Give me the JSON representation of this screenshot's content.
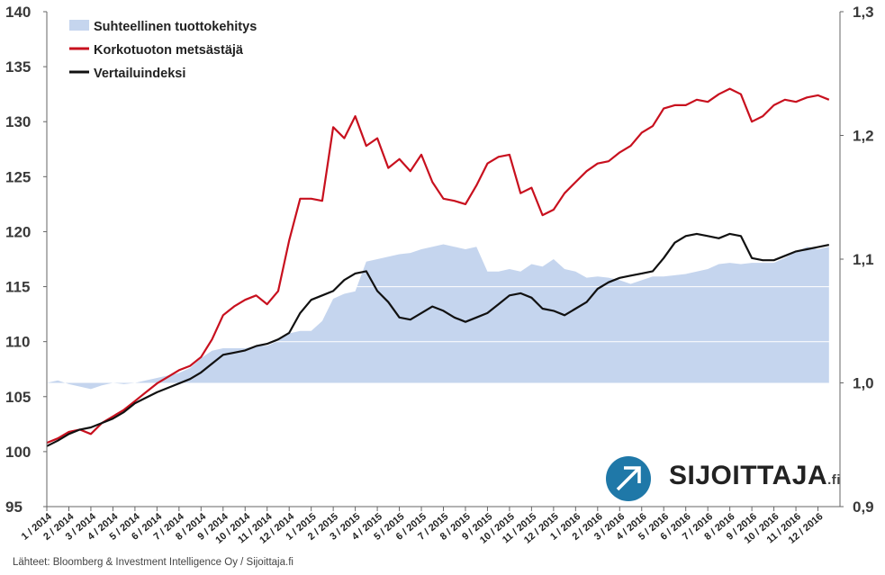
{
  "chart_data": {
    "type": "line",
    "title": "",
    "left_axis": {
      "ylim": [
        95,
        140
      ],
      "ticks": [
        "140",
        "135",
        "130",
        "125",
        "120",
        "115",
        "110",
        "105",
        "100",
        "95"
      ]
    },
    "right_axis": {
      "ylim": [
        0.9,
        1.3
      ],
      "ticks": [
        "1,3",
        "1,2",
        "1,1",
        "1,0",
        "0,9"
      ]
    },
    "x_ticks": [
      "1 / 2014",
      "2 / 2014",
      "3 / 2014",
      "4 / 2014",
      "5 / 2014",
      "6 / 2014",
      "7 / 2014",
      "8 / 2014",
      "9 / 2014",
      "10 / 2014",
      "11 / 2014",
      "12 / 2014",
      "1 / 2015",
      "2 / 2015",
      "3 / 2015",
      "4 / 2015",
      "5 / 2015",
      "6 / 2015",
      "7 / 2015",
      "8 / 2015",
      "9 / 2015",
      "10 / 2015",
      "11 / 2015",
      "12 / 2015",
      "1 / 2016",
      "2 / 2016",
      "3 / 2016",
      "4 / 2016",
      "5 / 2016",
      "6 / 2016",
      "7 / 2016",
      "8 / 2016",
      "9 / 2016",
      "10 / 2016",
      "11 / 2016",
      "12 / 2016"
    ],
    "legend_position": "top-left",
    "series": [
      {
        "name": "Suhteellinen tuottokehitys",
        "type": "area",
        "axis": "right",
        "color": "#c5d5ee",
        "x": [
          0,
          0.5,
          1,
          1.5,
          2,
          2.5,
          3,
          3.5,
          4,
          4.5,
          5,
          5.5,
          6,
          6.5,
          7,
          7.5,
          8,
          8.5,
          9,
          9.5,
          10,
          10.5,
          11,
          11.5,
          12,
          12.5,
          13,
          13.5,
          14,
          14.5,
          15,
          15.5,
          16,
          16.5,
          17,
          17.5,
          18,
          18.5,
          19,
          19.5,
          20,
          20.5,
          21,
          21.5,
          22,
          22.5,
          23,
          23.5,
          24,
          24.5,
          25,
          25.5,
          26,
          26.5,
          27,
          27.5,
          28,
          28.5,
          29,
          29.5,
          30,
          30.5,
          31,
          31.5,
          32,
          32.5,
          33,
          33.5,
          34,
          34.5,
          35,
          35.5
        ],
        "values": [
          1.0,
          1.002,
          0.999,
          0.997,
          0.995,
          0.998,
          1.0,
          0.999,
          1.0,
          1.002,
          1.004,
          1.006,
          1.008,
          1.012,
          1.02,
          1.026,
          1.028,
          1.028,
          1.028,
          1.03,
          1.03,
          1.034,
          1.04,
          1.042,
          1.042,
          1.05,
          1.068,
          1.072,
          1.074,
          1.098,
          1.1,
          1.102,
          1.104,
          1.105,
          1.108,
          1.11,
          1.112,
          1.11,
          1.108,
          1.11,
          1.09,
          1.09,
          1.092,
          1.09,
          1.096,
          1.094,
          1.1,
          1.092,
          1.09,
          1.085,
          1.086,
          1.085,
          1.083,
          1.08,
          1.083,
          1.086,
          1.086,
          1.087,
          1.088,
          1.09,
          1.092,
          1.096,
          1.097,
          1.096,
          1.097,
          1.097,
          1.097,
          1.101,
          1.106,
          1.11,
          1.108,
          1.11
        ]
      },
      {
        "name": "Korkotuoton metsästäjä",
        "type": "line",
        "axis": "left",
        "color": "#c8101e",
        "x": [
          0,
          0.5,
          1,
          1.5,
          2,
          2.5,
          3,
          3.5,
          4,
          4.5,
          5,
          5.5,
          6,
          6.5,
          7,
          7.5,
          8,
          8.5,
          9,
          9.5,
          10,
          10.5,
          11,
          11.5,
          12,
          12.5,
          13,
          13.5,
          14,
          14.5,
          15,
          15.5,
          16,
          16.5,
          17,
          17.5,
          18,
          18.5,
          19,
          19.5,
          20,
          20.5,
          21,
          21.5,
          22,
          22.5,
          23,
          23.5,
          24,
          24.5,
          25,
          25.5,
          26,
          26.5,
          27,
          27.5,
          28,
          28.5,
          29,
          29.5,
          30,
          30.5,
          31,
          31.5,
          32,
          32.5,
          33,
          33.5,
          34,
          34.5,
          35,
          35.5
        ],
        "values": [
          100.8,
          101.2,
          101.8,
          102.0,
          101.6,
          102.6,
          103.2,
          103.8,
          104.6,
          105.4,
          106.2,
          106.8,
          107.4,
          107.8,
          108.6,
          110.2,
          112.4,
          113.2,
          113.8,
          114.2,
          113.4,
          114.6,
          119.2,
          123.0,
          123.0,
          122.8,
          129.5,
          128.5,
          130.5,
          127.8,
          128.5,
          125.8,
          126.6,
          125.5,
          127.0,
          124.5,
          123.0,
          122.8,
          122.5,
          124.2,
          126.2,
          126.8,
          127.0,
          123.5,
          124.0,
          121.5,
          122.0,
          123.5,
          124.5,
          125.5,
          126.2,
          126.4,
          127.2,
          127.8,
          129.0,
          129.6,
          131.2,
          131.5,
          131.5,
          132.0,
          131.8,
          132.5,
          133.0,
          132.5,
          130.0,
          130.5,
          131.5,
          132.0,
          131.8,
          132.2,
          132.4,
          132.0
        ]
      },
      {
        "name": "Vertailuindeksi",
        "type": "line",
        "axis": "left",
        "color": "#111111",
        "x": [
          0,
          0.5,
          1,
          1.5,
          2,
          2.5,
          3,
          3.5,
          4,
          4.5,
          5,
          5.5,
          6,
          6.5,
          7,
          7.5,
          8,
          8.5,
          9,
          9.5,
          10,
          10.5,
          11,
          11.5,
          12,
          12.5,
          13,
          13.5,
          14,
          14.5,
          15,
          15.5,
          16,
          16.5,
          17,
          17.5,
          18,
          18.5,
          19,
          19.5,
          20,
          20.5,
          21,
          21.5,
          22,
          22.5,
          23,
          23.5,
          24,
          24.5,
          25,
          25.5,
          26,
          26.5,
          27,
          27.5,
          28,
          28.5,
          29,
          29.5,
          30,
          30.5,
          31,
          31.5,
          32,
          32.5,
          33,
          33.5,
          34,
          34.5,
          35,
          35.5
        ],
        "values": [
          100.5,
          101.0,
          101.6,
          102.0,
          102.2,
          102.6,
          103.0,
          103.6,
          104.4,
          104.9,
          105.4,
          105.8,
          106.2,
          106.6,
          107.2,
          108.0,
          108.8,
          109.0,
          109.2,
          109.6,
          109.8,
          110.2,
          110.8,
          112.6,
          113.8,
          114.2,
          114.6,
          115.6,
          116.2,
          116.4,
          114.6,
          113.6,
          112.2,
          112.0,
          112.6,
          113.2,
          112.8,
          112.2,
          111.8,
          112.2,
          112.6,
          113.4,
          114.2,
          114.4,
          114.0,
          113.0,
          112.8,
          112.4,
          113.0,
          113.6,
          114.8,
          115.4,
          115.8,
          116.0,
          116.2,
          116.4,
          117.6,
          119.0,
          119.6,
          119.8,
          119.6,
          119.4,
          119.8,
          119.6,
          117.6,
          117.4,
          117.4,
          117.8,
          118.2,
          118.4,
          118.6,
          118.8
        ]
      }
    ]
  },
  "source_text": "Lähteet: Bloomberg & Investment Intelligence Oy / Sijoittaja.fi",
  "logo": {
    "brand": "SIJOITTAJA",
    "suffix": ".fi",
    "icon": "arrow-up-right-icon"
  },
  "colors": {
    "area": "#c5d5ee",
    "red": "#c8101e",
    "black": "#111111",
    "logo_blue": "#1f78a8"
  }
}
